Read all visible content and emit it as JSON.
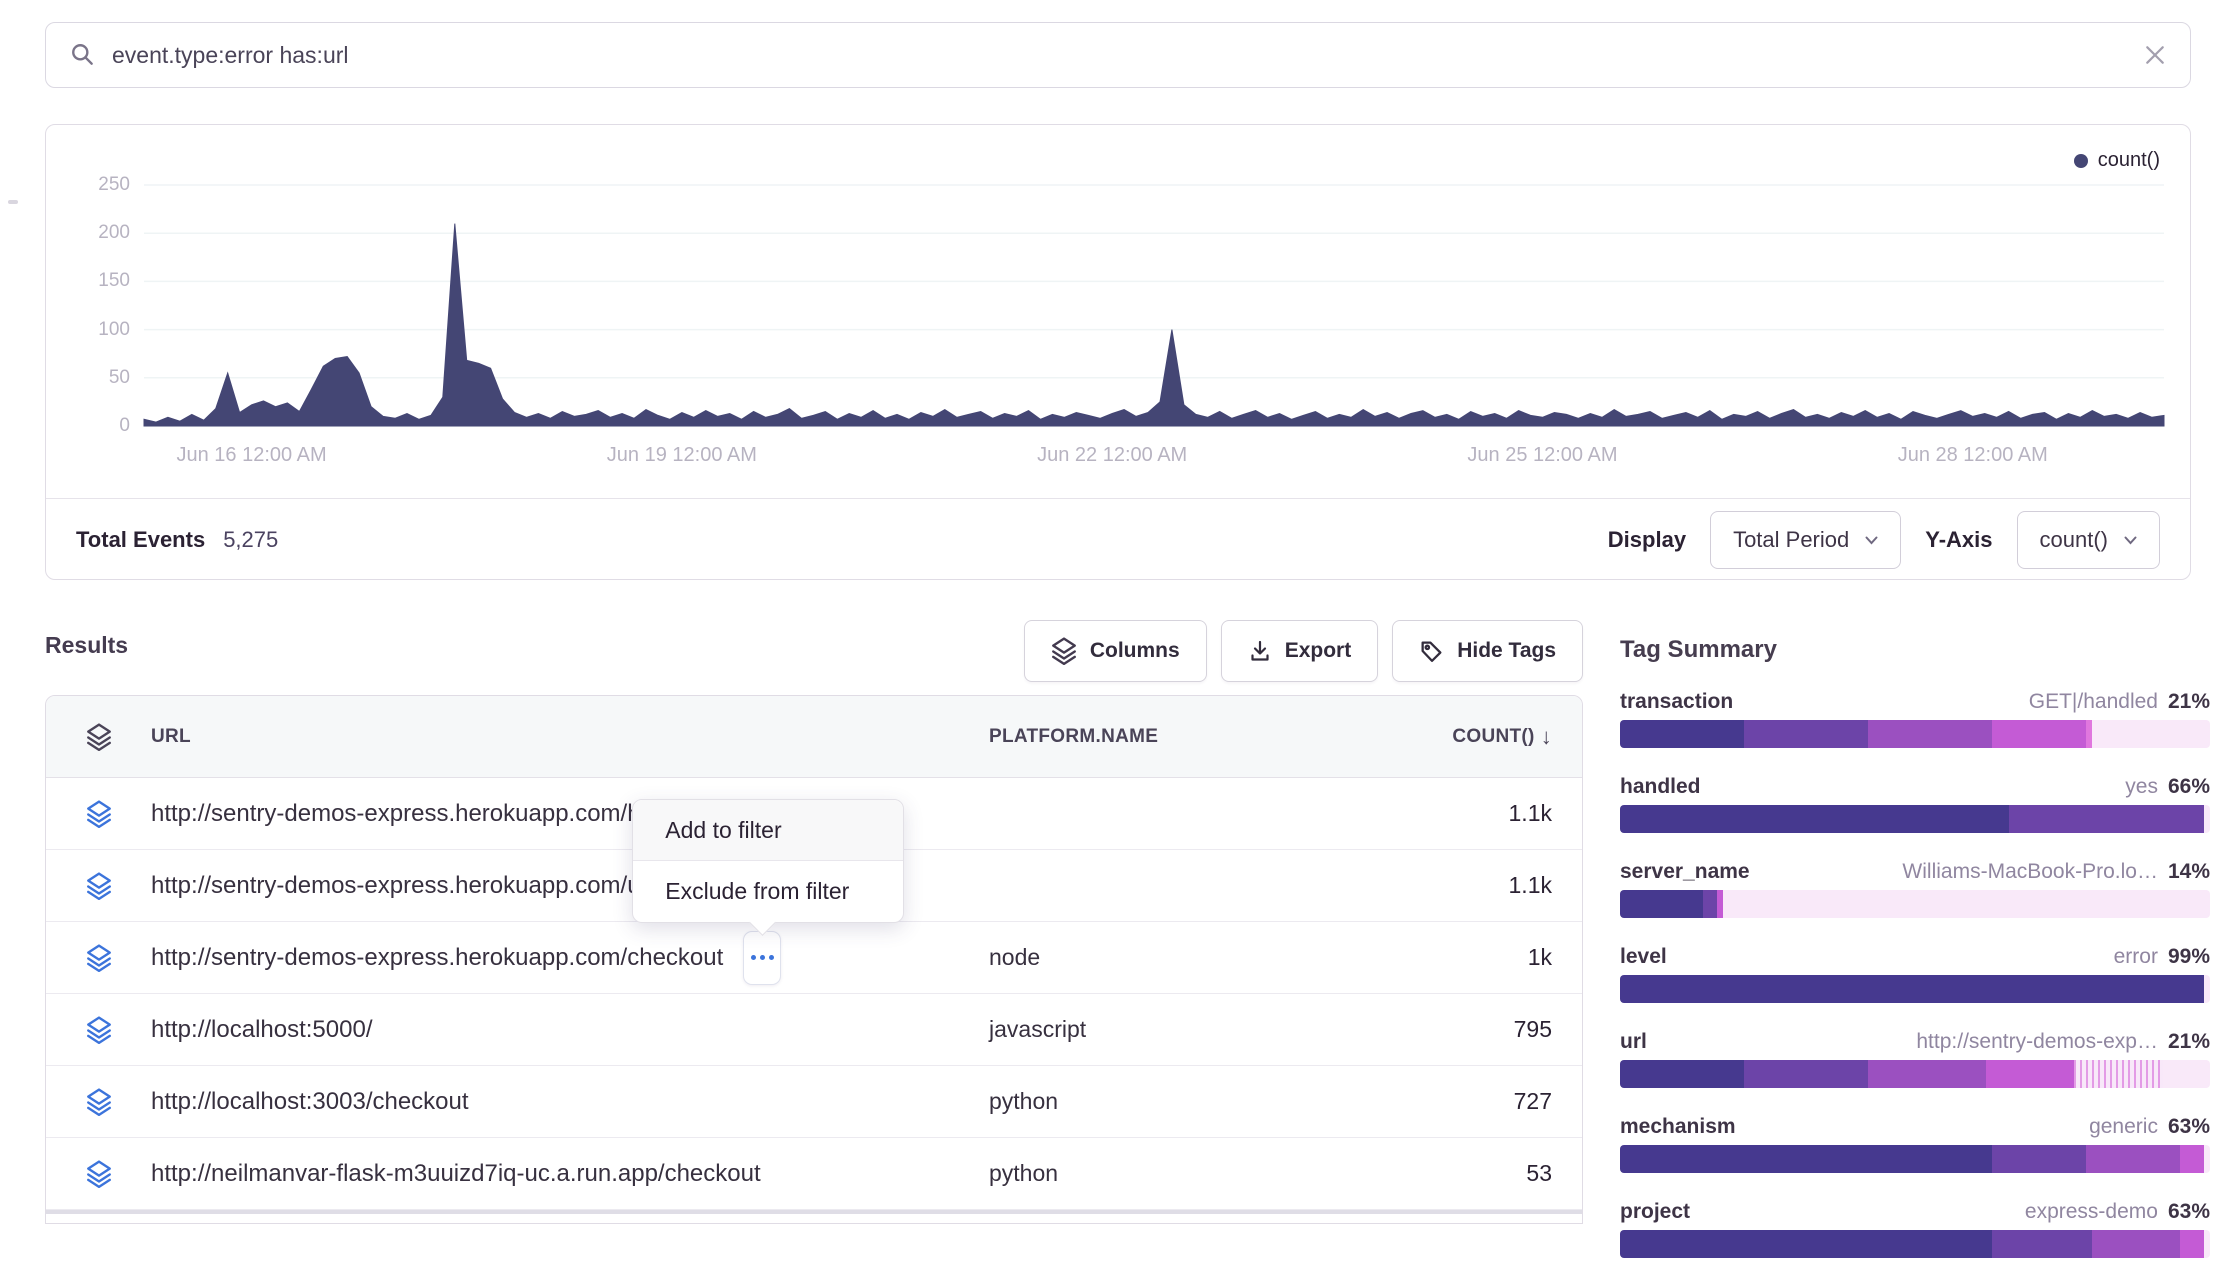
{
  "colors": {
    "chart_series": "#444674",
    "icon_blue": "#3C74DB",
    "palette": [
      "#46398F",
      "#6C44A8",
      "#9B50C0",
      "#C45BD5",
      "#E077DE",
      "#F9E9F9"
    ]
  },
  "search": {
    "query": "event.type:error has:url"
  },
  "chart_data": {
    "type": "area",
    "title": "",
    "legend": [
      "count()"
    ],
    "legend_position": "top-right",
    "grid": true,
    "ylim": [
      0,
      250
    ],
    "y_ticks": [
      0,
      50,
      100,
      150,
      200,
      250
    ],
    "x_tick_labels": [
      "Jun 16 12:00 AM",
      "Jun 19 12:00 AM",
      "Jun 22 12:00 AM",
      "Jun 25 12:00 AM",
      "Jun 28 12:00 AM"
    ],
    "x_tick_indices": [
      9,
      45,
      81,
      117,
      153
    ],
    "series": [
      {
        "name": "count()",
        "values": [
          7,
          4,
          9,
          5,
          12,
          6,
          18,
          55,
          14,
          22,
          26,
          20,
          24,
          15,
          38,
          62,
          70,
          72,
          55,
          20,
          10,
          8,
          13,
          7,
          11,
          30,
          210,
          68,
          65,
          60,
          28,
          14,
          9,
          13,
          8,
          15,
          10,
          12,
          16,
          9,
          13,
          8,
          17,
          11,
          7,
          14,
          9,
          16,
          10,
          13,
          7,
          15,
          9,
          12,
          18,
          8,
          11,
          15,
          7,
          13,
          9,
          16,
          8,
          12,
          7,
          14,
          10,
          17,
          9,
          12,
          15,
          8,
          13,
          10,
          16,
          7,
          12,
          9,
          14,
          11,
          8,
          13,
          17,
          10,
          14,
          25,
          100,
          22,
          12,
          9,
          15,
          8,
          12,
          16,
          9,
          13,
          7,
          11,
          15,
          8,
          12,
          9,
          17,
          10,
          14,
          8,
          13,
          16,
          9,
          12,
          7,
          15,
          10,
          13,
          8,
          16,
          11,
          9,
          14,
          12,
          8,
          13,
          9,
          17,
          10,
          12,
          15,
          8,
          11,
          14,
          9,
          16,
          7,
          12,
          10,
          15,
          8,
          13,
          17,
          9,
          12,
          8,
          14,
          10,
          16,
          9,
          13,
          7,
          15,
          11,
          8,
          12,
          16,
          10,
          13,
          9,
          15,
          8,
          12,
          14,
          7,
          13,
          9,
          16,
          10,
          12,
          8,
          14,
          9,
          11
        ]
      }
    ]
  },
  "chart_footer": {
    "total_events_label": "Total Events",
    "total_events_value": "5,275",
    "display_label": "Display",
    "display_value": "Total Period",
    "yaxis_label": "Y-Axis",
    "yaxis_value": "count()"
  },
  "results": {
    "title": "Results",
    "buttons": {
      "columns": "Columns",
      "export": "Export",
      "hide_tags": "Hide Tags"
    },
    "table": {
      "headers": {
        "url": "URL",
        "platform": "PLATFORM.NAME",
        "count": "COUNT()",
        "sort_indicator": "↓"
      },
      "rows": [
        {
          "url": "http://sentry-demos-express.herokuapp.com/handled",
          "platform": "",
          "count": "1.1k"
        },
        {
          "url": "http://sentry-demos-express.herokuapp.com/unhandled",
          "platform": "",
          "count": "1.1k"
        },
        {
          "url": "http://sentry-demos-express.herokuapp.com/checkout",
          "platform": "node",
          "count": "1k",
          "has_menu_button": true
        },
        {
          "url": "http://localhost:5000/",
          "platform": "javascript",
          "count": "795"
        },
        {
          "url": "http://localhost:3003/checkout",
          "platform": "python",
          "count": "727"
        },
        {
          "url": "http://neilmanvar-flask-m3uuizd7iq-uc.a.run.app/checkout",
          "platform": "python",
          "count": "53"
        }
      ]
    },
    "context_menu": {
      "items": [
        "Add to filter",
        "Exclude from filter"
      ]
    }
  },
  "tag_summary": {
    "title": "Tag Summary",
    "tags": [
      {
        "name": "transaction",
        "value": "GET|/handled",
        "percent": "21%",
        "segments": [
          [
            21,
            0
          ],
          [
            21,
            1
          ],
          [
            21,
            2
          ],
          [
            16,
            3
          ],
          [
            1,
            4
          ],
          [
            20,
            5
          ]
        ]
      },
      {
        "name": "handled",
        "value": "yes",
        "percent": "66%",
        "segments": [
          [
            66,
            0
          ],
          [
            33,
            1
          ],
          [
            1,
            5
          ]
        ]
      },
      {
        "name": "server_name",
        "value": "Williams-MacBook-Pro.lo…",
        "percent": "14%",
        "segments": [
          [
            14,
            0
          ],
          [
            2.5,
            1
          ],
          [
            1,
            3
          ],
          [
            82.5,
            5
          ]
        ]
      },
      {
        "name": "level",
        "value": "error",
        "percent": "99%",
        "segments": [
          [
            99,
            0
          ],
          [
            1,
            5
          ]
        ]
      },
      {
        "name": "url",
        "value": "http://sentry-demos-exp…",
        "percent": "21%",
        "segments": [
          [
            21,
            0
          ],
          [
            21,
            1
          ],
          [
            20,
            2
          ],
          [
            15,
            3
          ],
          [
            15,
            6
          ],
          [
            8,
            5
          ]
        ]
      },
      {
        "name": "mechanism",
        "value": "generic",
        "percent": "63%",
        "segments": [
          [
            63,
            0
          ],
          [
            16,
            1
          ],
          [
            16,
            2
          ],
          [
            4,
            3
          ],
          [
            1,
            5
          ]
        ]
      },
      {
        "name": "project",
        "value": "express-demo",
        "percent": "63%",
        "segments": [
          [
            63,
            0
          ],
          [
            17,
            1
          ],
          [
            15,
            2
          ],
          [
            4,
            3
          ],
          [
            1,
            5
          ]
        ]
      }
    ]
  }
}
